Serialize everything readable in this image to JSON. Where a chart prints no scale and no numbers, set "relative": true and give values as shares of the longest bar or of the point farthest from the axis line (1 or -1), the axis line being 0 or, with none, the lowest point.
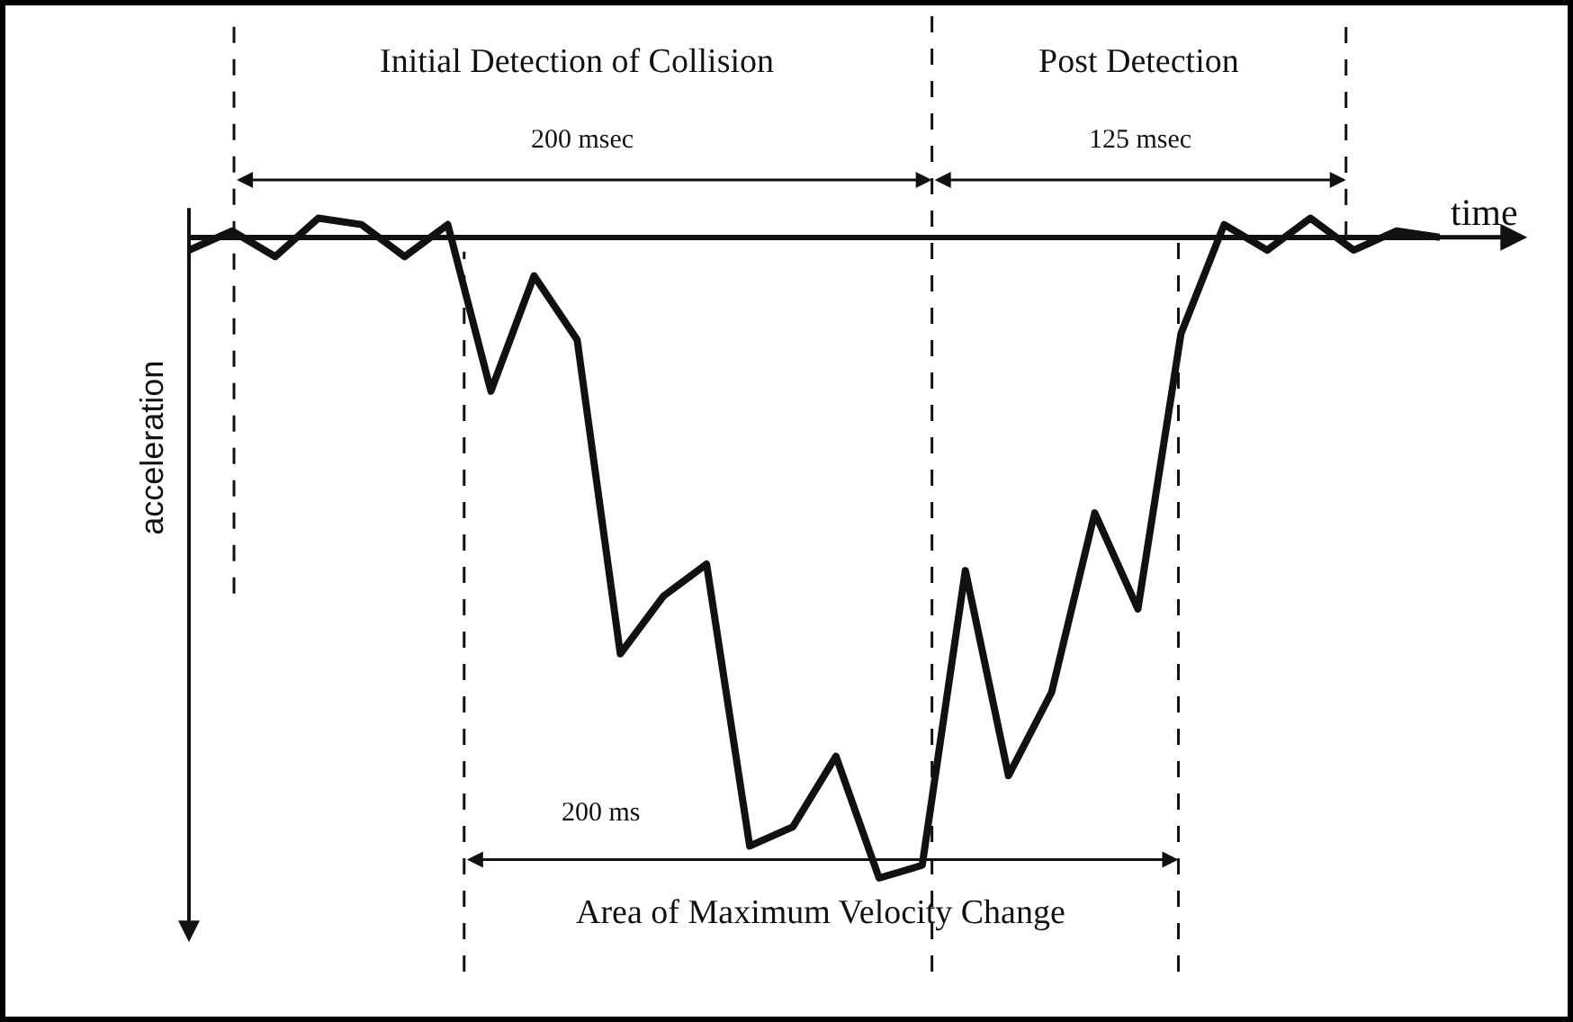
{
  "chart_data": {
    "type": "line",
    "relative": true,
    "color": "#111111",
    "xlabel": "time",
    "ylabel": "acceleration",
    "categories": [
      null,
      null,
      null,
      null,
      null,
      null,
      null,
      null,
      null,
      null,
      null,
      null,
      null,
      null,
      null,
      null,
      null,
      null,
      null,
      null,
      null,
      null,
      null,
      null,
      null,
      null,
      null,
      null,
      null,
      null
    ],
    "values": [
      -0.02,
      0.01,
      -0.03,
      0.03,
      0.02,
      -0.03,
      0.02,
      -0.24,
      -0.06,
      -0.16,
      -0.65,
      -0.56,
      -0.51,
      -0.95,
      -0.92,
      -0.81,
      -1,
      -0.98,
      -0.52,
      -0.84,
      -0.71,
      -0.43,
      -0.58,
      -0.15,
      0.02,
      -0.02,
      0.03,
      -0.02,
      0.01,
      0
    ],
    "annotations": [
      "Initial Detection of Collision",
      "Post Detection",
      "200 msec",
      "125 msec",
      "200 ms",
      "Area of Maximum Velocity Change"
    ]
  }
}
